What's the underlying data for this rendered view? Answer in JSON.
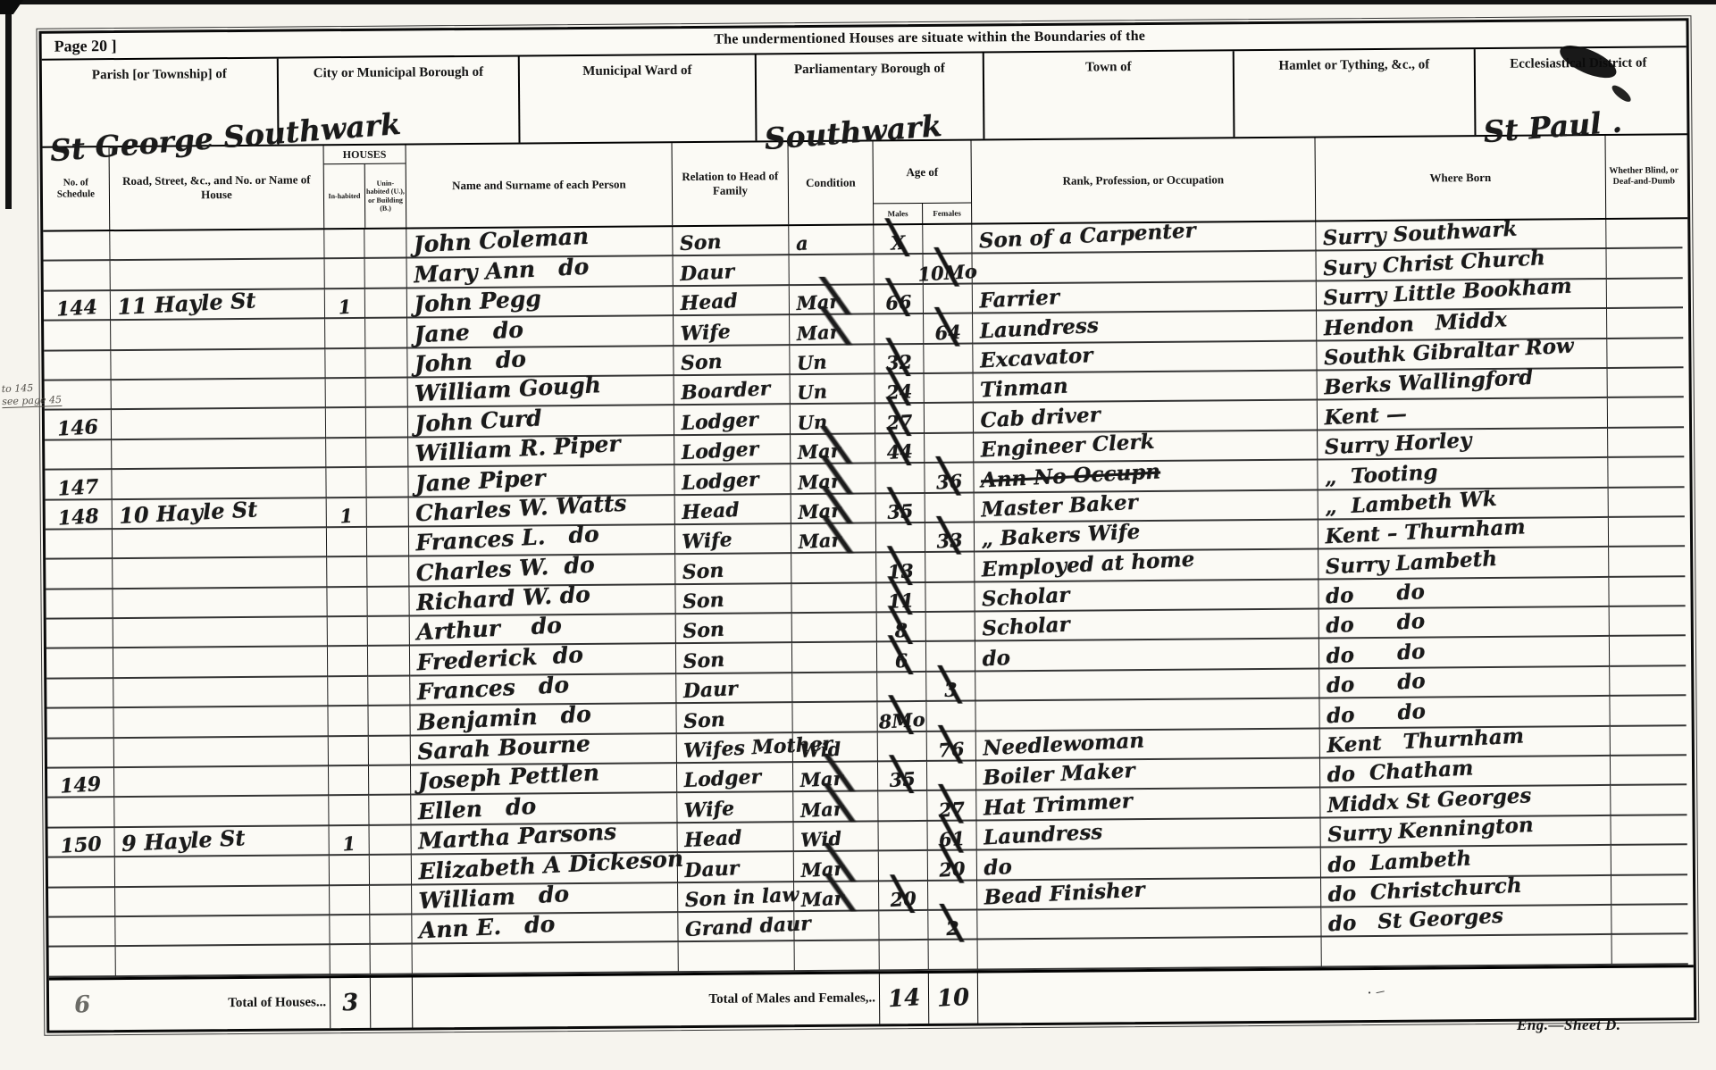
{
  "header": {
    "page_label": "Page 20 ]",
    "title": "The undermentioned Houses are situate within the Boundaries of the",
    "boxes": [
      {
        "label": "Parish [or Township] of",
        "value": "St George Southwark"
      },
      {
        "label": "City or Municipal Borough of",
        "value": ""
      },
      {
        "label": "Municipal Ward of",
        "value": ""
      },
      {
        "label": "Parliamentary Borough of",
        "value": "Southwark"
      },
      {
        "label": "Town of",
        "value": ""
      },
      {
        "label": "Hamlet or Tything, &c., of",
        "value": ""
      },
      {
        "label": "Ecclesiastical District of",
        "value": "St Paul ."
      }
    ]
  },
  "columns": {
    "schedule1": "No. of",
    "schedule2": "Schedule",
    "road": "Road, Street, &c., and No. or Name of House",
    "houses": "HOUSES",
    "inhabited": "In-habited",
    "uninhabited": "Unin-habited (U.), or Building (B.)",
    "name": "Name and Surname of each Person",
    "relation": "Relation to Head of Family",
    "condition": "Condition",
    "age": "Age of",
    "males": "Males",
    "females": "Females",
    "rank": "Rank, Profession, or Occupation",
    "born": "Where Born",
    "blind": "Whether Blind, or Deaf-and-Dumb"
  },
  "rows": [
    {
      "sched": "",
      "road": "",
      "inh": "",
      "uninh": "",
      "name": "John Coleman",
      "rel": "Son",
      "cond": "a",
      "ageM": "X",
      "ageF": "",
      "occ": "Son of a Carpenter",
      "born": "Surry Southwark",
      "blind": ""
    },
    {
      "sched": "",
      "road": "",
      "inh": "",
      "uninh": "",
      "name": "Mary Ann   do",
      "rel": "Daur",
      "cond": "",
      "ageM": "",
      "ageF": "10Mo",
      "occ": "",
      "born": "Sury Christ Church",
      "blind": ""
    },
    {
      "sched": "144",
      "road": "11 Hayle St",
      "inh": "1",
      "uninh": "",
      "name": "John Pegg",
      "rel": "Head",
      "cond": "Mar",
      "ageM": "66",
      "ageF": "",
      "occ": "Farrier",
      "born": "Surry Little Bookham",
      "blind": ""
    },
    {
      "sched": "",
      "road": "",
      "inh": "",
      "uninh": "",
      "name": "Jane   do",
      "rel": "Wife",
      "cond": "Mar",
      "ageM": "",
      "ageF": "64",
      "occ": "Laundress",
      "born": "Hendon   Middx",
      "blind": ""
    },
    {
      "sched": "",
      "road": "",
      "inh": "",
      "uninh": "",
      "name": "John   do",
      "rel": "Son",
      "cond": "Un",
      "ageM": "32",
      "ageF": "",
      "occ": "Excavator",
      "born": "Southk Gibraltar Row",
      "blind": ""
    },
    {
      "sched": "",
      "road": "",
      "inh": "",
      "uninh": "",
      "name": "William Gough",
      "rel": "Boarder",
      "cond": "Un",
      "ageM": "24",
      "ageF": "",
      "occ": "Tinman",
      "born": "Berks Wallingford",
      "blind": ""
    },
    {
      "sched": "146",
      "road": "",
      "inh": "",
      "uninh": "",
      "name": "John Curd",
      "rel": "Lodger",
      "cond": "Un",
      "ageM": "27",
      "ageF": "",
      "occ": "Cab driver",
      "born": "Kent —",
      "blind": ""
    },
    {
      "sched": "",
      "road": "",
      "inh": "",
      "uninh": "",
      "name": "William R. Piper",
      "rel": "Lodger",
      "cond": "Mar",
      "ageM": "44",
      "ageF": "",
      "occ": "Engineer Clerk",
      "born": "Surry Horley",
      "blind": ""
    },
    {
      "sched": "147",
      "road": "",
      "inh": "",
      "uninh": "",
      "name": "Jane Piper",
      "rel": "Lodger",
      "cond": "Mar",
      "ageM": "",
      "ageF": "36",
      "occ": "Ann No Occupn",
      "occStruck": true,
      "born": "„  Tooting",
      "blind": ""
    },
    {
      "sched": "148",
      "road": "10 Hayle St",
      "inh": "1",
      "uninh": "",
      "name": "Charles W. Watts",
      "rel": "Head",
      "cond": "Mar",
      "ageM": "35",
      "ageF": "",
      "occ": "Master Baker",
      "born": "„  Lambeth Wk",
      "blind": ""
    },
    {
      "sched": "",
      "road": "",
      "inh": "",
      "uninh": "",
      "name": "Frances L.   do",
      "rel": "Wife",
      "cond": "Mar",
      "ageM": "",
      "ageF": "33",
      "occ": "„ Bakers Wife",
      "born": "Kent – Thurnham",
      "blind": ""
    },
    {
      "sched": "",
      "road": "",
      "inh": "",
      "uninh": "",
      "name": "Charles W.  do",
      "rel": "Son",
      "cond": "",
      "ageM": "13",
      "ageF": "",
      "occ": "Employed at home",
      "born": "Surry Lambeth",
      "blind": ""
    },
    {
      "sched": "",
      "road": "",
      "inh": "",
      "uninh": "",
      "name": "Richard W. do",
      "rel": "Son",
      "cond": "",
      "ageM": "11",
      "ageF": "",
      "occ": "Scholar",
      "born": "do      do",
      "blind": ""
    },
    {
      "sched": "",
      "road": "",
      "inh": "",
      "uninh": "",
      "name": "Arthur    do",
      "rel": "Son",
      "cond": "",
      "ageM": "8",
      "ageF": "",
      "occ": "Scholar",
      "born": "do      do",
      "blind": ""
    },
    {
      "sched": "",
      "road": "",
      "inh": "",
      "uninh": "",
      "name": "Frederick  do",
      "rel": "Son",
      "cond": "",
      "ageM": "6",
      "ageF": "",
      "occ": "do",
      "born": "do      do",
      "blind": ""
    },
    {
      "sched": "",
      "road": "",
      "inh": "",
      "uninh": "",
      "name": "Frances   do",
      "rel": "Daur",
      "cond": "",
      "ageM": "",
      "ageF": "3",
      "occ": "",
      "born": "do      do",
      "blind": ""
    },
    {
      "sched": "",
      "road": "",
      "inh": "",
      "uninh": "",
      "name": "Benjamin   do",
      "rel": "Son",
      "cond": "",
      "ageM": "8Mo",
      "ageF": "",
      "occ": "",
      "born": "do      do",
      "blind": ""
    },
    {
      "sched": "",
      "road": "",
      "inh": "",
      "uninh": "",
      "name": "Sarah Bourne",
      "rel": "Wifes Mother",
      "cond": "Wid",
      "ageM": "",
      "ageF": "76",
      "occ": "Needlewoman",
      "born": "Kent   Thurnham",
      "blind": ""
    },
    {
      "sched": "149",
      "road": "",
      "inh": "",
      "uninh": "",
      "name": "Joseph Pettlen",
      "rel": "Lodger",
      "cond": "Mar",
      "ageM": "35",
      "ageF": "",
      "occ": "Boiler Maker",
      "born": "do  Chatham",
      "blind": ""
    },
    {
      "sched": "",
      "road": "",
      "inh": "",
      "uninh": "",
      "name": "Ellen   do",
      "rel": "Wife",
      "cond": "Mar",
      "ageM": "",
      "ageF": "27",
      "occ": "Hat Trimmer",
      "born": "Middx St Georges",
      "blind": ""
    },
    {
      "sched": "150",
      "road": "9 Hayle St",
      "inh": "1",
      "uninh": "",
      "name": "Martha Parsons",
      "rel": "Head",
      "cond": "Wid",
      "ageM": "",
      "ageF": "61",
      "occ": "Laundress",
      "born": "Surry Kennington",
      "blind": ""
    },
    {
      "sched": "",
      "road": "",
      "inh": "",
      "uninh": "",
      "name": "Elizabeth A Dickeson",
      "rel": "Daur",
      "cond": "Mar",
      "ageM": "",
      "ageF": "20",
      "occ": "do",
      "born": "do  Lambeth",
      "blind": ""
    },
    {
      "sched": "",
      "road": "",
      "inh": "",
      "uninh": "",
      "name": "William   do",
      "rel": "Son in law",
      "cond": "Mar",
      "ageM": "20",
      "ageF": "",
      "occ": "Bead Finisher",
      "born": "do  Christchurch",
      "blind": ""
    },
    {
      "sched": "",
      "road": "",
      "inh": "",
      "uninh": "",
      "name": "Ann E.   do",
      "rel": "Grand daur",
      "cond": "",
      "ageM": "",
      "ageF": "2",
      "occ": "",
      "born": "do   St Georges",
      "blind": ""
    },
    {
      "sched": "",
      "road": "",
      "inh": "",
      "uninh": "",
      "name": "",
      "rel": "",
      "cond": "",
      "ageM": "",
      "ageF": "",
      "occ": "",
      "born": "",
      "blind": ""
    }
  ],
  "totals": {
    "pencil": "6",
    "houses_label": "Total of Houses...",
    "houses_value": "3",
    "males_females_label": "Total of Males and Females,..",
    "males_value": "14",
    "females_value": "10"
  },
  "scan": {
    "margin_note_line1": "to 145",
    "margin_note_line2": "see page 45",
    "footer": "Eng.—Sheet D.",
    "pencil_dash": "·  –"
  }
}
